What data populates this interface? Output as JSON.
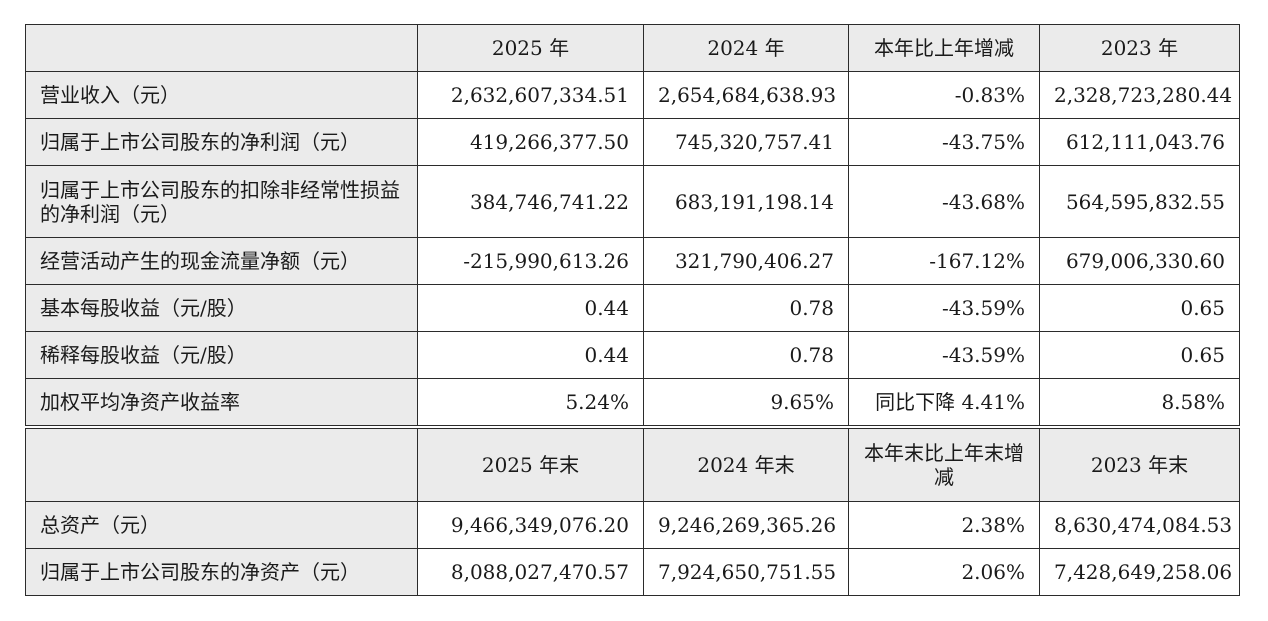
{
  "annual_table": {
    "headers": [
      "",
      "2025 年",
      "2024 年",
      "本年比上年增减",
      "2023 年"
    ],
    "rows": [
      {
        "label": "营业收入（元）",
        "y2025": "2,632,607,334.51",
        "y2024": "2,654,684,638.93",
        "change": "-0.83%",
        "y2023": "2,328,723,280.44"
      },
      {
        "label": "归属于上市公司股东的净利润（元）",
        "y2025": "419,266,377.50",
        "y2024": "745,320,757.41",
        "change": "-43.75%",
        "y2023": "612,111,043.76"
      },
      {
        "label": "归属于上市公司股东的扣除非经常性损益的净利润（元）",
        "y2025": "384,746,741.22",
        "y2024": "683,191,198.14",
        "change": "-43.68%",
        "y2023": "564,595,832.55"
      },
      {
        "label": "经营活动产生的现金流量净额（元）",
        "y2025": "-215,990,613.26",
        "y2024": "321,790,406.27",
        "change": "-167.12%",
        "y2023": "679,006,330.60"
      },
      {
        "label": "基本每股收益（元/股）",
        "y2025": "0.44",
        "y2024": "0.78",
        "change": "-43.59%",
        "y2023": "0.65"
      },
      {
        "label": "稀释每股收益（元/股）",
        "y2025": "0.44",
        "y2024": "0.78",
        "change": "-43.59%",
        "y2023": "0.65"
      },
      {
        "label": "加权平均净资产收益率",
        "y2025": "5.24%",
        "y2024": "9.65%",
        "change": "同比下降 4.41%",
        "y2023": "8.58%"
      }
    ]
  },
  "yearend_table": {
    "headers": [
      "",
      "2025 年末",
      "2024 年末",
      "本年末比上年末增减",
      "2023 年末"
    ],
    "rows": [
      {
        "label": "总资产（元）",
        "y2025": "9,466,349,076.20",
        "y2024": "9,246,269,365.26",
        "change": "2.38%",
        "y2023": "8,630,474,084.53"
      },
      {
        "label": "归属于上市公司股东的净资产（元）",
        "y2025": "8,088,027,470.57",
        "y2024": "7,924,650,751.55",
        "change": "2.06%",
        "y2023": "7,428,649,258.06"
      }
    ]
  }
}
